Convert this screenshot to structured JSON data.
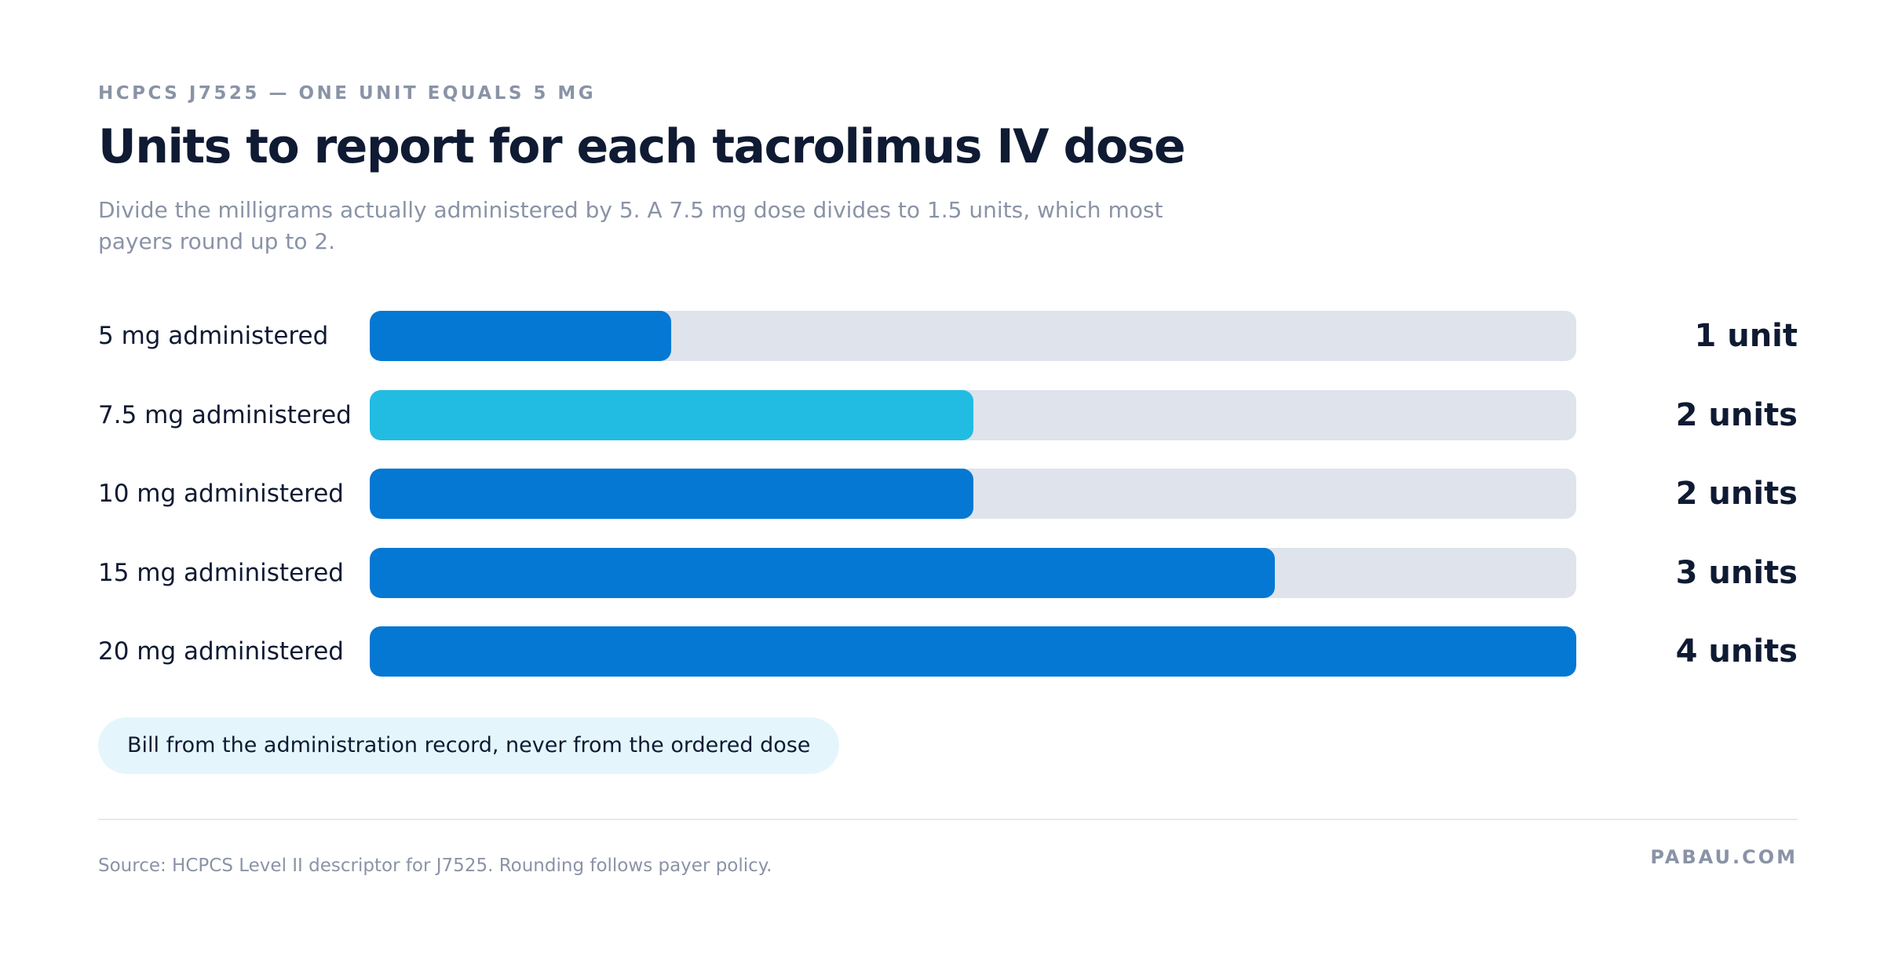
{
  "eyebrow": "HCPCS J7525 — ONE UNIT EQUALS 5 MG",
  "title": "Units to report for each tacrolimus IV dose",
  "subtitle": "Divide the milligrams actually administered by 5. A 7.5 mg dose divides to 1.5 units, which most payers round up to 2.",
  "chart_data": {
    "type": "bar",
    "orientation": "horizontal",
    "categories": [
      "5 mg administered",
      "7.5 mg administered",
      "10 mg administered",
      "15 mg administered",
      "20 mg administered"
    ],
    "values": [
      1,
      2,
      2,
      3,
      4
    ],
    "value_labels": [
      "1 unit",
      "2 units",
      "2 units",
      "3 units",
      "4 units"
    ],
    "xlim": [
      0,
      4
    ],
    "grid": false,
    "colors": [
      "#0478d3",
      "#22bce2",
      "#0478d3",
      "#0478d3",
      "#0478d3"
    ],
    "track_color": "#dfe3ec"
  },
  "callout": "Bill from the administration record, never from the ordered dose",
  "footer": {
    "source": "Source: HCPCS Level II descriptor for J7525. Rounding follows payer policy.",
    "brand": "PABAU.COM"
  }
}
